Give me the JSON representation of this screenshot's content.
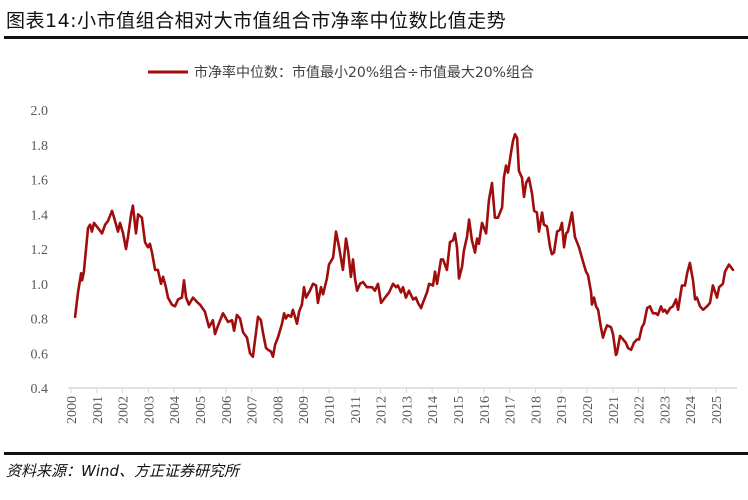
{
  "title": "图表14:小市值组合相对大市值组合市净率中位数比值走势",
  "source": "资料来源：Wind、方正证券研究所",
  "chart_data": {
    "type": "line",
    "title": "",
    "xlabel": "",
    "ylabel": "",
    "xlim": [
      2000,
      2025.9
    ],
    "ylim": [
      0.4,
      2.0
    ],
    "grid": false,
    "legend_position": "top-center",
    "x_ticks": [
      "2000",
      "2001",
      "2002",
      "2003",
      "2004",
      "2005",
      "2006",
      "2007",
      "2008",
      "2009",
      "2010",
      "2011",
      "2012",
      "2013",
      "2014",
      "2015",
      "2016",
      "2017",
      "2018",
      "2019",
      "2020",
      "2021",
      "2022",
      "2023",
      "2024",
      "2025"
    ],
    "y_ticks": [
      "0.4",
      "0.6",
      "0.8",
      "1.0",
      "1.2",
      "1.4",
      "1.6",
      "1.8",
      "2.0"
    ],
    "series": [
      {
        "name": "市净率中位数：市值最小20%组合÷市值最大20%组合",
        "color": "#a00d0d",
        "points": [
          [
            2000.16,
            0.81
          ],
          [
            2000.27,
            0.95
          ],
          [
            2000.39,
            1.06
          ],
          [
            2000.43,
            1.02
          ],
          [
            2000.5,
            1.07
          ],
          [
            2000.66,
            1.32
          ],
          [
            2000.74,
            1.34
          ],
          [
            2000.81,
            1.3
          ],
          [
            2000.89,
            1.35
          ],
          [
            2001.05,
            1.32
          ],
          [
            2001.2,
            1.29
          ],
          [
            2001.32,
            1.34
          ],
          [
            2001.43,
            1.36
          ],
          [
            2001.59,
            1.42
          ],
          [
            2001.67,
            1.38
          ],
          [
            2001.82,
            1.3
          ],
          [
            2001.9,
            1.35
          ],
          [
            2002.02,
            1.29
          ],
          [
            2002.13,
            1.2
          ],
          [
            2002.21,
            1.27
          ],
          [
            2002.33,
            1.4
          ],
          [
            2002.4,
            1.45
          ],
          [
            2002.52,
            1.29
          ],
          [
            2002.6,
            1.4
          ],
          [
            2002.75,
            1.38
          ],
          [
            2002.87,
            1.24
          ],
          [
            2002.98,
            1.21
          ],
          [
            2003.06,
            1.23
          ],
          [
            2003.14,
            1.18
          ],
          [
            2003.26,
            1.08
          ],
          [
            2003.37,
            1.08
          ],
          [
            2003.49,
            1.0
          ],
          [
            2003.57,
            1.04
          ],
          [
            2003.68,
            0.98
          ],
          [
            2003.76,
            0.92
          ],
          [
            2003.91,
            0.88
          ],
          [
            2004.03,
            0.87
          ],
          [
            2004.15,
            0.91
          ],
          [
            2004.3,
            0.92
          ],
          [
            2004.38,
            1.02
          ],
          [
            2004.46,
            0.92
          ],
          [
            2004.57,
            0.88
          ],
          [
            2004.73,
            0.92
          ],
          [
            2004.92,
            0.89
          ],
          [
            2005.0,
            0.88
          ],
          [
            2005.19,
            0.84
          ],
          [
            2005.35,
            0.75
          ],
          [
            2005.5,
            0.79
          ],
          [
            2005.58,
            0.71
          ],
          [
            2005.7,
            0.76
          ],
          [
            2005.89,
            0.83
          ],
          [
            2006.09,
            0.78
          ],
          [
            2006.24,
            0.79
          ],
          [
            2006.32,
            0.73
          ],
          [
            2006.43,
            0.82
          ],
          [
            2006.55,
            0.8
          ],
          [
            2006.67,
            0.72
          ],
          [
            2006.82,
            0.69
          ],
          [
            2006.94,
            0.6
          ],
          [
            2007.05,
            0.58
          ],
          [
            2007.17,
            0.72
          ],
          [
            2007.25,
            0.81
          ],
          [
            2007.36,
            0.79
          ],
          [
            2007.44,
            0.72
          ],
          [
            2007.56,
            0.63
          ],
          [
            2007.64,
            0.62
          ],
          [
            2007.75,
            0.61
          ],
          [
            2007.83,
            0.58
          ],
          [
            2007.91,
            0.65
          ],
          [
            2008.02,
            0.69
          ],
          [
            2008.18,
            0.77
          ],
          [
            2008.26,
            0.83
          ],
          [
            2008.33,
            0.8
          ],
          [
            2008.41,
            0.82
          ],
          [
            2008.53,
            0.81
          ],
          [
            2008.6,
            0.85
          ],
          [
            2008.76,
            0.77
          ],
          [
            2008.84,
            0.84
          ],
          [
            2008.95,
            0.88
          ],
          [
            2009.03,
            0.98
          ],
          [
            2009.11,
            0.92
          ],
          [
            2009.26,
            0.96
          ],
          [
            2009.38,
            1.0
          ],
          [
            2009.5,
            0.99
          ],
          [
            2009.57,
            0.89
          ],
          [
            2009.69,
            0.98
          ],
          [
            2009.77,
            0.94
          ],
          [
            2009.92,
            1.03
          ],
          [
            2010.0,
            1.11
          ],
          [
            2010.16,
            1.15
          ],
          [
            2010.27,
            1.3
          ],
          [
            2010.39,
            1.21
          ],
          [
            2010.54,
            1.08
          ],
          [
            2010.66,
            1.26
          ],
          [
            2010.74,
            1.19
          ],
          [
            2010.85,
            1.04
          ],
          [
            2010.93,
            1.14
          ],
          [
            2011.01,
            1.03
          ],
          [
            2011.09,
            0.96
          ],
          [
            2011.2,
            1.0
          ],
          [
            2011.32,
            1.01
          ],
          [
            2011.47,
            0.98
          ],
          [
            2011.67,
            0.98
          ],
          [
            2011.78,
            0.96
          ],
          [
            2011.9,
            1.0
          ],
          [
            2012.02,
            0.89
          ],
          [
            2012.17,
            0.92
          ],
          [
            2012.33,
            0.95
          ],
          [
            2012.48,
            1.0
          ],
          [
            2012.6,
            0.98
          ],
          [
            2012.67,
            0.99
          ],
          [
            2012.79,
            0.95
          ],
          [
            2012.87,
            0.98
          ],
          [
            2012.98,
            0.92
          ],
          [
            2013.1,
            0.96
          ],
          [
            2013.26,
            0.91
          ],
          [
            2013.37,
            0.92
          ],
          [
            2013.45,
            0.89
          ],
          [
            2013.57,
            0.86
          ],
          [
            2013.64,
            0.89
          ],
          [
            2013.8,
            0.95
          ],
          [
            2013.88,
            1.0
          ],
          [
            2014.03,
            0.99
          ],
          [
            2014.11,
            1.07
          ],
          [
            2014.19,
            1.0
          ],
          [
            2014.34,
            1.14
          ],
          [
            2014.42,
            1.14
          ],
          [
            2014.57,
            1.08
          ],
          [
            2014.69,
            1.24
          ],
          [
            2014.81,
            1.25
          ],
          [
            2014.88,
            1.29
          ],
          [
            2014.96,
            1.21
          ],
          [
            2015.04,
            1.03
          ],
          [
            2015.16,
            1.1
          ],
          [
            2015.23,
            1.19
          ],
          [
            2015.35,
            1.27
          ],
          [
            2015.43,
            1.37
          ],
          [
            2015.54,
            1.25
          ],
          [
            2015.66,
            1.18
          ],
          [
            2015.74,
            1.26
          ],
          [
            2015.81,
            1.23
          ],
          [
            2015.93,
            1.35
          ],
          [
            2016.09,
            1.29
          ],
          [
            2016.2,
            1.48
          ],
          [
            2016.32,
            1.58
          ],
          [
            2016.43,
            1.38
          ],
          [
            2016.55,
            1.38
          ],
          [
            2016.71,
            1.44
          ],
          [
            2016.78,
            1.61
          ],
          [
            2016.86,
            1.68
          ],
          [
            2016.94,
            1.64
          ],
          [
            2017.05,
            1.75
          ],
          [
            2017.13,
            1.82
          ],
          [
            2017.21,
            1.86
          ],
          [
            2017.29,
            1.84
          ],
          [
            2017.36,
            1.65
          ],
          [
            2017.48,
            1.61
          ],
          [
            2017.56,
            1.5
          ],
          [
            2017.64,
            1.58
          ],
          [
            2017.75,
            1.61
          ],
          [
            2017.87,
            1.52
          ],
          [
            2017.95,
            1.42
          ],
          [
            2018.06,
            1.41
          ],
          [
            2018.14,
            1.3
          ],
          [
            2018.26,
            1.41
          ],
          [
            2018.33,
            1.34
          ],
          [
            2018.45,
            1.33
          ],
          [
            2018.57,
            1.21
          ],
          [
            2018.64,
            1.17
          ],
          [
            2018.72,
            1.18
          ],
          [
            2018.84,
            1.3
          ],
          [
            2018.95,
            1.31
          ],
          [
            2019.03,
            1.35
          ],
          [
            2019.11,
            1.21
          ],
          [
            2019.19,
            1.29
          ],
          [
            2019.26,
            1.3
          ],
          [
            2019.42,
            1.41
          ],
          [
            2019.53,
            1.27
          ],
          [
            2019.69,
            1.21
          ],
          [
            2019.84,
            1.13
          ],
          [
            2019.96,
            1.07
          ],
          [
            2020.04,
            1.05
          ],
          [
            2020.16,
            0.95
          ],
          [
            2020.19,
            0.88
          ],
          [
            2020.27,
            0.92
          ],
          [
            2020.35,
            0.87
          ],
          [
            2020.43,
            0.85
          ],
          [
            2020.54,
            0.75
          ],
          [
            2020.62,
            0.69
          ],
          [
            2020.7,
            0.73
          ],
          [
            2020.78,
            0.76
          ],
          [
            2020.93,
            0.75
          ],
          [
            2021.01,
            0.71
          ],
          [
            2021.12,
            0.59
          ],
          [
            2021.16,
            0.6
          ],
          [
            2021.28,
            0.7
          ],
          [
            2021.4,
            0.68
          ],
          [
            2021.51,
            0.66
          ],
          [
            2021.59,
            0.63
          ],
          [
            2021.71,
            0.62
          ],
          [
            2021.82,
            0.66
          ],
          [
            2021.94,
            0.68
          ],
          [
            2022.02,
            0.68
          ],
          [
            2022.13,
            0.75
          ],
          [
            2022.21,
            0.77
          ],
          [
            2022.33,
            0.86
          ],
          [
            2022.44,
            0.87
          ],
          [
            2022.56,
            0.83
          ],
          [
            2022.67,
            0.83
          ],
          [
            2022.75,
            0.82
          ],
          [
            2022.87,
            0.87
          ],
          [
            2022.95,
            0.84
          ],
          [
            2023.02,
            0.85
          ],
          [
            2023.1,
            0.83
          ],
          [
            2023.22,
            0.86
          ],
          [
            2023.33,
            0.87
          ],
          [
            2023.45,
            0.91
          ],
          [
            2023.53,
            0.85
          ],
          [
            2023.68,
            0.99
          ],
          [
            2023.8,
            0.99
          ],
          [
            2023.88,
            1.06
          ],
          [
            2023.99,
            1.12
          ],
          [
            2024.11,
            1.02
          ],
          [
            2024.19,
            0.91
          ],
          [
            2024.26,
            0.92
          ],
          [
            2024.38,
            0.87
          ],
          [
            2024.5,
            0.85
          ],
          [
            2024.65,
            0.87
          ],
          [
            2024.77,
            0.89
          ],
          [
            2024.88,
            0.99
          ],
          [
            2025.04,
            0.92
          ],
          [
            2025.12,
            0.98
          ],
          [
            2025.27,
            1.0
          ],
          [
            2025.35,
            1.07
          ],
          [
            2025.5,
            1.11
          ],
          [
            2025.66,
            1.08
          ]
        ]
      }
    ]
  }
}
